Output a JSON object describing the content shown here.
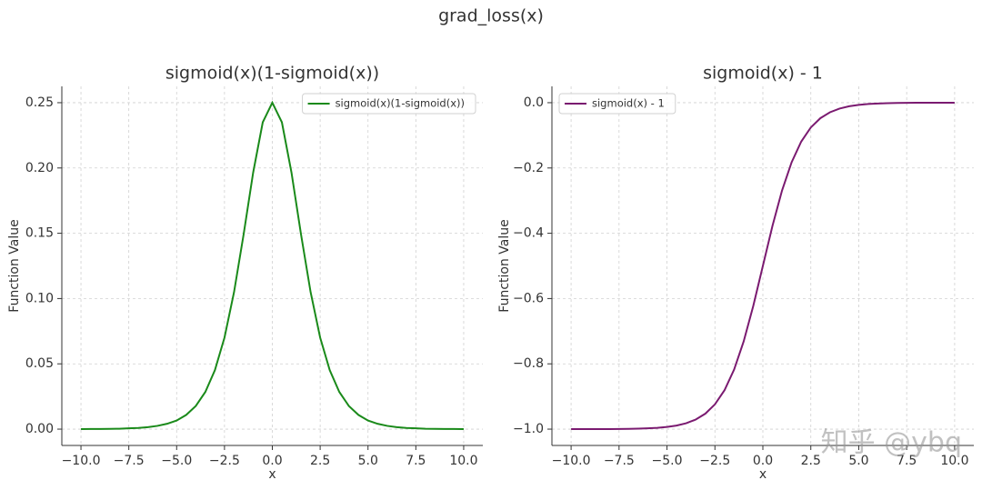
{
  "title": "grad_loss(x)",
  "watermark": "知乎 @ybq",
  "chart_data": [
    {
      "type": "line",
      "title": "sigmoid(x)(1-sigmoid(x))",
      "xlabel": "x",
      "ylabel": "Function Value",
      "x": [
        -10,
        -9.5,
        -9,
        -8.5,
        -8,
        -7.5,
        -7,
        -6.5,
        -6,
        -5.5,
        -5,
        -4.5,
        -4,
        -3.5,
        -3,
        -2.5,
        -2,
        -1.5,
        -1,
        -0.5,
        0,
        0.5,
        1,
        1.5,
        2,
        2.5,
        3,
        3.5,
        4,
        4.5,
        5,
        5.5,
        6,
        6.5,
        7,
        7.5,
        8,
        8.5,
        9,
        9.5,
        10
      ],
      "series": [
        {
          "name": "sigmoid(x)(1-sigmoid(x))",
          "color": "#1a8a1a",
          "values": [
            0.0,
            0.0001,
            0.0001,
            0.0002,
            0.0003,
            0.0006,
            0.0009,
            0.0015,
            0.0025,
            0.0041,
            0.0066,
            0.0109,
            0.0177,
            0.0285,
            0.0452,
            0.0701,
            0.105,
            0.1491,
            0.1966,
            0.235,
            0.25,
            0.235,
            0.1966,
            0.1491,
            0.105,
            0.0701,
            0.0452,
            0.0285,
            0.0177,
            0.0109,
            0.0066,
            0.0041,
            0.0025,
            0.0015,
            0.0009,
            0.0006,
            0.0003,
            0.0002,
            0.0001,
            0.0001,
            0.0
          ]
        }
      ],
      "xlim": [
        -11,
        11
      ],
      "xticks": [
        {
          "value": -10,
          "label": "−10.0"
        },
        {
          "value": -7.5,
          "label": "−7.5"
        },
        {
          "value": -5,
          "label": "−5.0"
        },
        {
          "value": -2.5,
          "label": "−2.5"
        },
        {
          "value": 0,
          "label": "0.0"
        },
        {
          "value": 2.5,
          "label": "2.5"
        },
        {
          "value": 5,
          "label": "5.0"
        },
        {
          "value": 7.5,
          "label": "7.5"
        },
        {
          "value": 10,
          "label": "10.0"
        }
      ],
      "ylim": [
        -0.0125,
        0.2625
      ],
      "yticks": [
        {
          "value": 0,
          "label": "0.00"
        },
        {
          "value": 0.05,
          "label": "0.05"
        },
        {
          "value": 0.1,
          "label": "0.10"
        },
        {
          "value": 0.15,
          "label": "0.15"
        },
        {
          "value": 0.2,
          "label": "0.20"
        },
        {
          "value": 0.25,
          "label": "0.25"
        }
      ],
      "grid": true,
      "legend": "upper right"
    },
    {
      "type": "line",
      "title": "sigmoid(x) - 1",
      "xlabel": "x",
      "ylabel": "Function Value",
      "x": [
        -10,
        -9.5,
        -9,
        -8.5,
        -8,
        -7.5,
        -7,
        -6.5,
        -6,
        -5.5,
        -5,
        -4.5,
        -4,
        -3.5,
        -3,
        -2.5,
        -2,
        -1.5,
        -1,
        -0.5,
        0,
        0.5,
        1,
        1.5,
        2,
        2.5,
        3,
        3.5,
        4,
        4.5,
        5,
        5.5,
        6,
        6.5,
        7,
        7.5,
        8,
        8.5,
        9,
        9.5,
        10
      ],
      "series": [
        {
          "name": "sigmoid(x) - 1",
          "color": "#7a1a70",
          "values": [
            -1.0,
            -0.9999,
            -0.9999,
            -0.9998,
            -0.9997,
            -0.9994,
            -0.9991,
            -0.9985,
            -0.9975,
            -0.9959,
            -0.9933,
            -0.989,
            -0.982,
            -0.9707,
            -0.9526,
            -0.9241,
            -0.8808,
            -0.8176,
            -0.7311,
            -0.6225,
            -0.5,
            -0.3775,
            -0.2689,
            -0.1824,
            -0.1192,
            -0.0759,
            -0.0474,
            -0.0293,
            -0.018,
            -0.011,
            -0.0067,
            -0.0041,
            -0.0025,
            -0.0015,
            -0.0009,
            -0.0006,
            -0.0003,
            -0.0002,
            -0.0001,
            -0.0001,
            0.0
          ]
        }
      ],
      "xlim": [
        -11,
        11
      ],
      "xticks": [
        {
          "value": -10,
          "label": "−10.0"
        },
        {
          "value": -7.5,
          "label": "−7.5"
        },
        {
          "value": -5,
          "label": "−5.0"
        },
        {
          "value": -2.5,
          "label": "−2.5"
        },
        {
          "value": 0,
          "label": "0.0"
        },
        {
          "value": 2.5,
          "label": "2.5"
        },
        {
          "value": 5,
          "label": "5.0"
        },
        {
          "value": 7.5,
          "label": "7.5"
        },
        {
          "value": 10,
          "label": "10.0"
        }
      ],
      "ylim": [
        -1.05,
        0.05
      ],
      "yticks": [
        {
          "value": -1,
          "label": "−1.0"
        },
        {
          "value": -0.8,
          "label": "−0.8"
        },
        {
          "value": -0.6,
          "label": "−0.6"
        },
        {
          "value": -0.4,
          "label": "−0.4"
        },
        {
          "value": -0.2,
          "label": "−0.2"
        },
        {
          "value": 0,
          "label": "0.0"
        }
      ],
      "grid": true,
      "legend": "upper left"
    }
  ]
}
